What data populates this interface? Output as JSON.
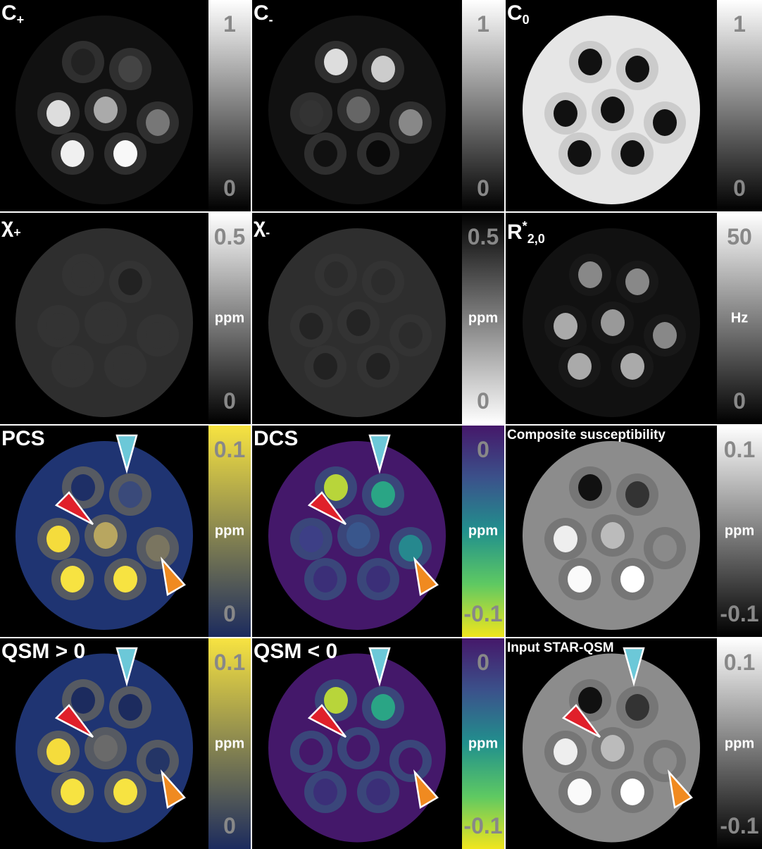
{
  "panels": [
    {
      "title": "C",
      "sub": "+",
      "sup": "",
      "ticks": [
        "1",
        "0"
      ],
      "unit": "",
      "colormap": [
        "#ffffff",
        "#000000"
      ],
      "background": "#111",
      "vials": [
        "#222",
        "#444",
        "#ddd",
        "#aaa",
        "#777",
        "#f0f0f0",
        "#f8f8f8"
      ],
      "halo": "#555",
      "arrows": false
    },
    {
      "title": "C",
      "sub": "-",
      "sup": "",
      "ticks": [
        "1",
        "0"
      ],
      "unit": "",
      "colormap": [
        "#ffffff",
        "#000000"
      ],
      "background": "#111",
      "vials": [
        "#ddd",
        "#ccc",
        "#333",
        "#666",
        "#888",
        "#111",
        "#0a0a0a"
      ],
      "halo": "#555",
      "arrows": false
    },
    {
      "title": "C",
      "sub": "0",
      "sup": "",
      "ticks": [
        "1",
        "0"
      ],
      "unit": "",
      "colormap": [
        "#ffffff",
        "#000000"
      ],
      "background": "#e6e6e6",
      "vials": [
        "#111",
        "#111",
        "#111",
        "#111",
        "#111",
        "#111",
        "#111"
      ],
      "halo": "#aaa",
      "arrows": false
    },
    {
      "title": "χ",
      "sub": "+",
      "sup": "",
      "ticks": [
        "0.5",
        "0"
      ],
      "unit": "ppm",
      "colormap": [
        "#ffffff",
        "#000000"
      ],
      "background": "#2e2e2e",
      "vials": [
        "#333",
        "#222",
        "#333",
        "#333",
        "#333",
        "#333",
        "#333"
      ],
      "halo": "#3a3a3a",
      "arrows": false
    },
    {
      "title": "χ",
      "sub": "-",
      "sup": "",
      "ticks": [
        "0.5",
        "0"
      ],
      "unit": "ppm",
      "colormap": [
        "#000000",
        "#ffffff"
      ],
      "background": "#2e2e2e",
      "vials": [
        "#2c2c2c",
        "#2c2c2c",
        "#242424",
        "#242424",
        "#2c2c2c",
        "#222",
        "#222"
      ],
      "halo": "#3a3a3a",
      "arrows": false
    },
    {
      "title": "R",
      "sub": "2,0",
      "sup": "*",
      "ticks": [
        "50",
        "0"
      ],
      "unit": "Hz",
      "colormap": [
        "#ffffff",
        "#000000"
      ],
      "background": "#111",
      "vials": [
        "#888",
        "#888",
        "#aaa",
        "#999",
        "#888",
        "#aaa",
        "#aaa"
      ],
      "halo": "#222",
      "arrows": false
    },
    {
      "title": "PCS",
      "sub": "",
      "sup": "",
      "ticks": [
        "0.1",
        "0"
      ],
      "unit": "ppm",
      "colormap": [
        "#f7e341",
        "#1c2b5e"
      ],
      "background": "#1f3472",
      "vials": [
        "#1e2f66",
        "#3a4a7a",
        "#f5dc3c",
        "#b8a660",
        "#7a7560",
        "#f7e341",
        "#f7e341"
      ],
      "halo": "#9a8a50",
      "arrows": true
    },
    {
      "title": "DCS",
      "sub": "",
      "sup": "",
      "ticks": [
        "0",
        "-0.1"
      ],
      "unit": "ppm",
      "colormap": [
        "#45186a",
        "#3b528b",
        "#21908d",
        "#5ec962",
        "#f0e51e"
      ],
      "background": "#44186a",
      "vials": [
        "#b8d53a",
        "#2aa585",
        "#3d3f86",
        "#39568c",
        "#26888e",
        "#3b2f78",
        "#3b2f78"
      ],
      "halo": "#2f7f8e",
      "arrows": true
    },
    {
      "title": "Composite susceptibility",
      "sub": "",
      "sup": "",
      "ticks": [
        "0.1",
        "-0.1"
      ],
      "unit": "ppm",
      "colormap": [
        "#ffffff",
        "#000000"
      ],
      "background": "#8c8c8c",
      "vials": [
        "#111",
        "#333",
        "#eee",
        "#bbb",
        "#8a8a8a",
        "#fafafa",
        "#ffffff"
      ],
      "halo": "#5a5a5a",
      "arrows": false
    },
    {
      "title": "QSM > 0",
      "sub": "",
      "sup": "",
      "ticks": [
        "0.1",
        "0"
      ],
      "unit": "ppm",
      "colormap": [
        "#f7e341",
        "#1c2b5e"
      ],
      "background": "#1f3472",
      "vials": [
        "#1c2b5e",
        "#1c2b5e",
        "#f5dc3c",
        "#6a6a6a",
        "#243566",
        "#f7e341",
        "#f7e341"
      ],
      "halo": "#9a8a50",
      "arrows": true
    },
    {
      "title": "QSM < 0",
      "sub": "",
      "sup": "",
      "ticks": [
        "0",
        "-0.1"
      ],
      "unit": "ppm",
      "colormap": [
        "#45186a",
        "#3b528b",
        "#21908d",
        "#5ec962",
        "#f0e51e"
      ],
      "background": "#44186a",
      "vials": [
        "#b8d53a",
        "#2aa585",
        "#45186a",
        "#45186a",
        "#45186a",
        "#3b2f78",
        "#3b2f78"
      ],
      "halo": "#2f7f8e",
      "arrows": true
    },
    {
      "title": "Input STAR-QSM",
      "sub": "",
      "sup": "",
      "ticks": [
        "0.1",
        "-0.1"
      ],
      "unit": "ppm",
      "colormap": [
        "#ffffff",
        "#000000"
      ],
      "background": "#8c8c8c",
      "vials": [
        "#111",
        "#333",
        "#eee",
        "#bbb",
        "#8a8a8a",
        "#fafafa",
        "#ffffff"
      ],
      "halo": "#5a5a5a",
      "arrows": true
    }
  ],
  "arrow_colors": {
    "cyan": "#6cc8d8",
    "red": "#e0202a",
    "orange": "#f08a20"
  }
}
